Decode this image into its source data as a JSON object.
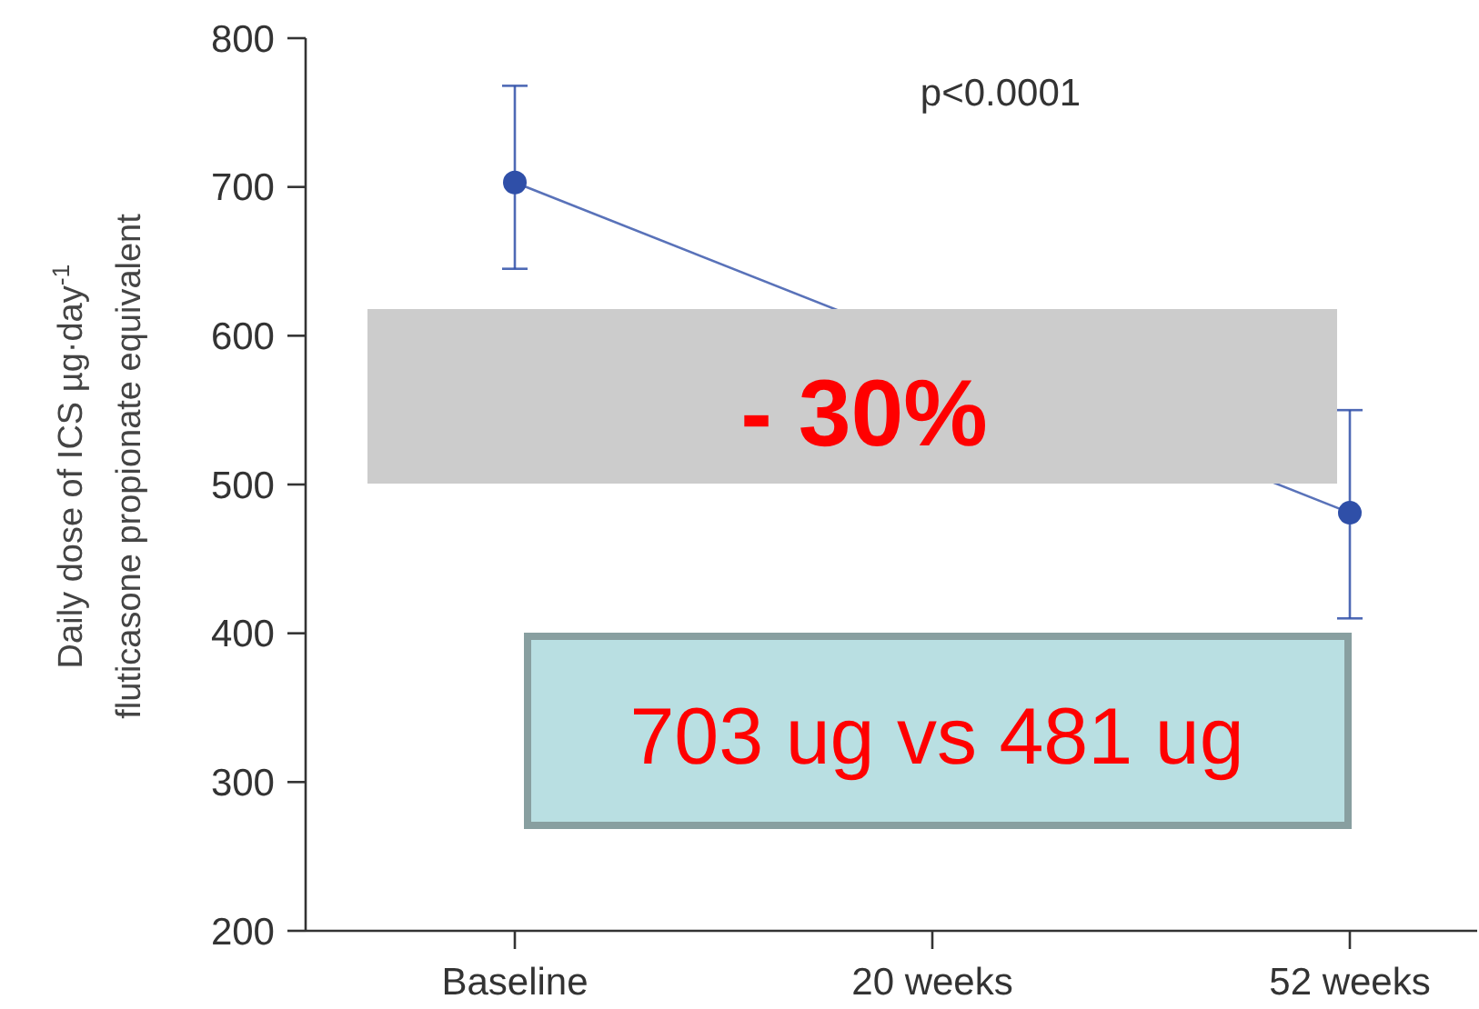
{
  "chart_data": {
    "type": "line",
    "ylabel": "Daily dose of ICS µg·day$^{-1}$\nfluticasone propionate equivalent",
    "categories": [
      "Baseline",
      "20 weeks",
      "52 weeks"
    ],
    "values": [
      703,
      null,
      481
    ],
    "color": "#2f4fa8",
    "errors": [
      [
        645,
        768
      ],
      null,
      [
        410,
        550
      ]
    ],
    "ylim": [
      200,
      800
    ],
    "yticks": [
      200,
      300,
      400,
      500,
      600,
      700,
      800
    ],
    "marker": "circle",
    "line_style": "solid",
    "grid": false,
    "annotations": [
      "p<0.0001",
      "- 30%",
      "703 ug vs 481 ug"
    ]
  }
}
